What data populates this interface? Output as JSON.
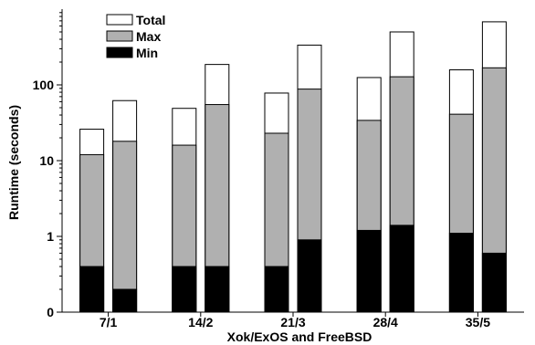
{
  "chart_data": {
    "type": "bar",
    "subtype": "stacked-grouped",
    "y_scale": "log",
    "xlabel": "Xok/ExOS and FreeBSD",
    "ylabel": "Runtime (seconds)",
    "ylim": [
      0.1,
      1000
    ],
    "yticks": [
      {
        "value": 0.1,
        "label": "0"
      },
      {
        "value": 1,
        "label": "1"
      },
      {
        "value": 10,
        "label": "10"
      },
      {
        "value": 100,
        "label": "100"
      }
    ],
    "categories": [
      "7/1",
      "14/2",
      "21/3",
      "28/4",
      "35/5"
    ],
    "bars_per_category": 2,
    "legend": {
      "placement": "top-left",
      "entries": [
        {
          "name": "Total",
          "color": "#ffffff"
        },
        {
          "name": "Max",
          "color": "#b0b0b0"
        },
        {
          "name": "Min",
          "color": "#000000"
        }
      ]
    },
    "series": [
      {
        "name": "Min",
        "color": "#000000",
        "values": [
          [
            0.4,
            0.2
          ],
          [
            0.4,
            0.4
          ],
          [
            0.4,
            0.9
          ],
          [
            1.2,
            1.4
          ],
          [
            1.1,
            0.6
          ]
        ]
      },
      {
        "name": "Max",
        "color": "#b0b0b0",
        "values": [
          [
            12,
            18
          ],
          [
            16,
            55
          ],
          [
            23,
            88
          ],
          [
            34,
            128
          ],
          [
            41,
            168
          ]
        ]
      },
      {
        "name": "Total",
        "color": "#ffffff",
        "values": [
          [
            26,
            62
          ],
          [
            49,
            186
          ],
          [
            78,
            335
          ],
          [
            125,
            500
          ],
          [
            158,
            680
          ]
        ]
      }
    ]
  }
}
